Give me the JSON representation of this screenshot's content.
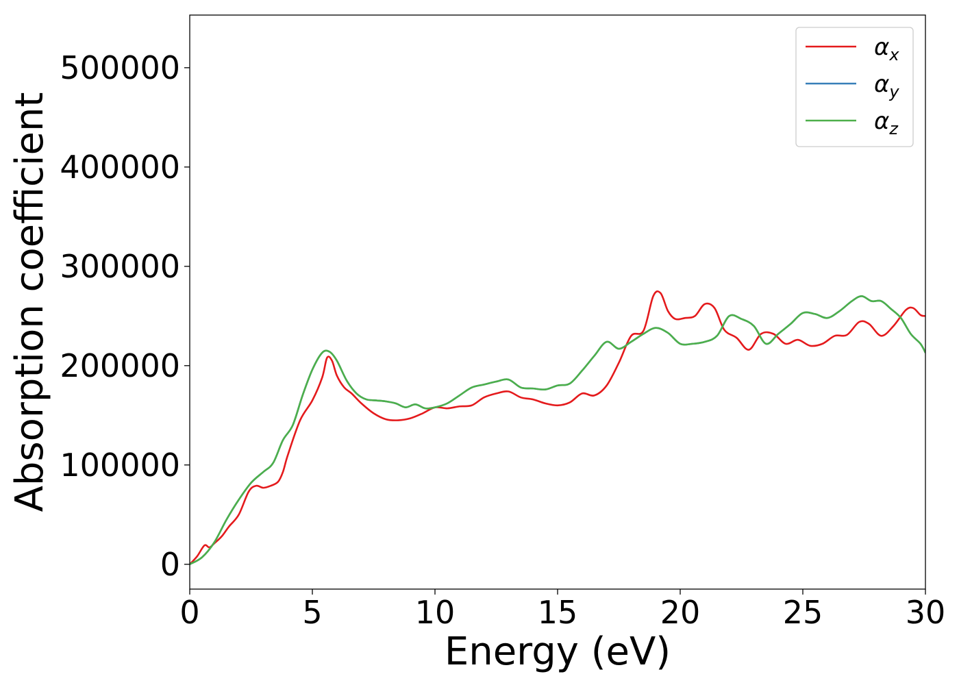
{
  "chart_data": {
    "type": "line",
    "title": "",
    "xlabel": "Energy (eV)",
    "ylabel": "Absorption coefficient",
    "xlim": [
      0,
      30
    ],
    "ylim": [
      -25000,
      553000
    ],
    "xticks": [
      0,
      5,
      10,
      15,
      20,
      25,
      30
    ],
    "xtick_labels": [
      "0",
      "5",
      "10",
      "15",
      "20",
      "25",
      "30"
    ],
    "yticks": [
      0,
      100000,
      200000,
      300000,
      400000,
      500000
    ],
    "ytick_labels": [
      "0",
      "100000",
      "200000",
      "300000",
      "400000",
      "500000"
    ],
    "grid": false,
    "legend_placement": "top-right",
    "series": [
      {
        "name": "α",
        "subscript": "x",
        "color": "#e41a1c",
        "x": [
          0,
          0.3,
          0.6,
          0.8,
          1.0,
          1.3,
          1.6,
          2.0,
          2.4,
          2.7,
          3.0,
          3.3,
          3.6,
          3.8,
          4.0,
          4.5,
          5.0,
          5.4,
          5.6,
          5.8,
          6.0,
          6.3,
          6.6,
          7.0,
          7.5,
          8.0,
          8.5,
          9.0,
          9.5,
          10.0,
          10.5,
          11.0,
          11.5,
          12.0,
          12.5,
          13.0,
          13.5,
          14.0,
          14.5,
          15.0,
          15.5,
          16.0,
          16.5,
          17.0,
          17.5,
          18.0,
          18.5,
          18.9,
          19.2,
          19.5,
          19.8,
          20.2,
          20.6,
          21.0,
          21.4,
          21.8,
          22.3,
          22.8,
          23.3,
          23.8,
          24.3,
          24.8,
          25.3,
          25.8,
          26.3,
          26.8,
          27.3,
          27.7,
          28.2,
          28.7,
          29.2,
          29.5,
          29.8,
          30.0
        ],
        "y": [
          0,
          8000,
          19000,
          17000,
          21000,
          28000,
          38000,
          50000,
          73000,
          79000,
          77000,
          79000,
          83000,
          93000,
          110000,
          145000,
          165000,
          188000,
          208000,
          205000,
          190000,
          178000,
          172000,
          162000,
          152000,
          146000,
          145000,
          147000,
          152000,
          158000,
          157000,
          159000,
          160000,
          168000,
          172000,
          174000,
          168000,
          166000,
          162000,
          160000,
          163000,
          172000,
          170000,
          180000,
          203000,
          230000,
          235000,
          270000,
          273000,
          255000,
          247000,
          248000,
          250000,
          262000,
          258000,
          236000,
          228000,
          216000,
          232000,
          232000,
          222000,
          226000,
          220000,
          222000,
          230000,
          231000,
          244000,
          242000,
          230000,
          240000,
          256000,
          258000,
          251000,
          250000
        ]
      },
      {
        "name": "α",
        "subscript": "y",
        "color": "#377eb8",
        "x": [
          0,
          0.5,
          1.0,
          1.5,
          2.0,
          2.5,
          3.0,
          3.4,
          3.8,
          4.2,
          4.6,
          5.0,
          5.4,
          5.7,
          6.0,
          6.4,
          6.8,
          7.2,
          7.6,
          8.0,
          8.4,
          8.8,
          9.2,
          9.6,
          10.0,
          10.5,
          11.0,
          11.5,
          12.0,
          12.5,
          13.0,
          13.5,
          14.0,
          14.5,
          15.0,
          15.5,
          16.0,
          16.5,
          17.0,
          17.5,
          18.0,
          18.5,
          19.0,
          19.5,
          20.0,
          20.5,
          21.0,
          21.5,
          22.0,
          22.5,
          23.0,
          23.5,
          24.0,
          24.5,
          25.0,
          25.5,
          26.0,
          26.5,
          27.0,
          27.4,
          27.8,
          28.2,
          28.6,
          29.0,
          29.4,
          29.8,
          30.0
        ],
        "y": [
          0,
          7000,
          22000,
          45000,
          65000,
          82000,
          93000,
          102000,
          125000,
          140000,
          170000,
          196000,
          213000,
          214000,
          205000,
          185000,
          172000,
          166000,
          165000,
          164000,
          162000,
          158000,
          161000,
          157000,
          158000,
          162000,
          170000,
          178000,
          181000,
          184000,
          186000,
          178000,
          177000,
          176000,
          180000,
          182000,
          195000,
          210000,
          224000,
          217000,
          224000,
          232000,
          238000,
          233000,
          222000,
          222000,
          224000,
          230000,
          250000,
          247000,
          240000,
          222000,
          232000,
          242000,
          253000,
          252000,
          248000,
          255000,
          265000,
          270000,
          265000,
          265000,
          257000,
          248000,
          232000,
          222000,
          213000
        ]
      },
      {
        "name": "α",
        "subscript": "z",
        "color": "#4daf4a",
        "x": [
          0,
          0.5,
          1.0,
          1.5,
          2.0,
          2.5,
          3.0,
          3.4,
          3.8,
          4.2,
          4.6,
          5.0,
          5.4,
          5.7,
          6.0,
          6.4,
          6.8,
          7.2,
          7.6,
          8.0,
          8.4,
          8.8,
          9.2,
          9.6,
          10.0,
          10.5,
          11.0,
          11.5,
          12.0,
          12.5,
          13.0,
          13.5,
          14.0,
          14.5,
          15.0,
          15.5,
          16.0,
          16.5,
          17.0,
          17.5,
          18.0,
          18.5,
          19.0,
          19.5,
          20.0,
          20.5,
          21.0,
          21.5,
          22.0,
          22.5,
          23.0,
          23.5,
          24.0,
          24.5,
          25.0,
          25.5,
          26.0,
          26.5,
          27.0,
          27.4,
          27.8,
          28.2,
          28.6,
          29.0,
          29.4,
          29.8,
          30.0
        ],
        "y": [
          0,
          7000,
          22000,
          45000,
          65000,
          82000,
          93000,
          102000,
          125000,
          140000,
          170000,
          196000,
          213000,
          214000,
          205000,
          185000,
          172000,
          166000,
          165000,
          164000,
          162000,
          158000,
          161000,
          157000,
          158000,
          162000,
          170000,
          178000,
          181000,
          184000,
          186000,
          178000,
          177000,
          176000,
          180000,
          182000,
          195000,
          210000,
          224000,
          217000,
          224000,
          232000,
          238000,
          233000,
          222000,
          222000,
          224000,
          230000,
          250000,
          247000,
          240000,
          222000,
          232000,
          242000,
          253000,
          252000,
          248000,
          255000,
          265000,
          270000,
          265000,
          265000,
          257000,
          248000,
          232000,
          222000,
          213000
        ]
      }
    ]
  }
}
